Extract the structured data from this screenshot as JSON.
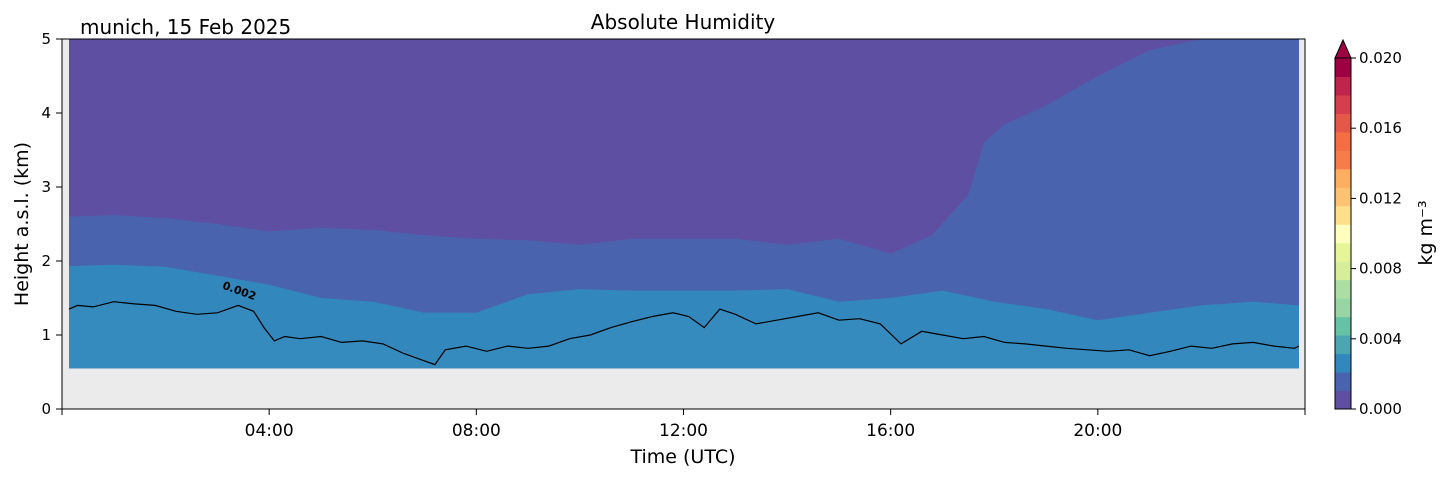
{
  "chart_data": {
    "type": "heatmap",
    "title": "Absolute Humidity",
    "location_date": "munich, 15 Feb 2025",
    "xlabel": "Time (UTC)",
    "ylabel": "Height a.s.l. (km)",
    "xlim_hours": [
      0,
      24
    ],
    "ylim_km": [
      0,
      5
    ],
    "x_ticks": [
      {
        "hour": 4,
        "label": "04:00"
      },
      {
        "hour": 8,
        "label": "08:00"
      },
      {
        "hour": 12,
        "label": "12:00"
      },
      {
        "hour": 16,
        "label": "16:00"
      },
      {
        "hour": 20,
        "label": "20:00"
      }
    ],
    "y_ticks": [
      {
        "value": 0,
        "label": "0"
      },
      {
        "value": 1,
        "label": "1"
      },
      {
        "value": 2,
        "label": "2"
      },
      {
        "value": 3,
        "label": "3"
      },
      {
        "value": 4,
        "label": "4"
      },
      {
        "value": 5,
        "label": "5"
      }
    ],
    "data_bottom_km": 0.55,
    "no_data_color": "#ebebeb",
    "colormap": "Spectral_r",
    "colorbar": {
      "label": "kg m⁻³",
      "range": [
        0.0,
        0.02
      ],
      "extend": "max",
      "ticks": [
        {
          "value": 0.0,
          "label": "0.000"
        },
        {
          "value": 0.004,
          "label": "0.004"
        },
        {
          "value": 0.008,
          "label": "0.008"
        },
        {
          "value": 0.012,
          "label": "0.012"
        },
        {
          "value": 0.016,
          "label": "0.016"
        },
        {
          "value": 0.02,
          "label": "0.020"
        }
      ],
      "colors": [
        "#5e4fa2",
        "#4a63ae",
        "#3288bd",
        "#4ca6b1",
        "#66c2a5",
        "#99d5a4",
        "#abdda4",
        "#d6ee9b",
        "#e6f598",
        "#fffebe",
        "#fee08b",
        "#fdc373",
        "#fdae61",
        "#f67d4a",
        "#f46d43",
        "#e55749",
        "#d53e4f",
        "#be244c",
        "#9e0142"
      ]
    },
    "filled_bands": [
      {
        "name": "lowest humidity",
        "color": "#5e4fa2",
        "boundary_km": []
      },
      {
        "name": "second band",
        "color": "#4a63ae",
        "boundary_hours": [
          0,
          1,
          2,
          3,
          4,
          5,
          6,
          7,
          8,
          9,
          10,
          11,
          12,
          13,
          14,
          15,
          16,
          16.8,
          17.5,
          17.8,
          18.2,
          19,
          20,
          21,
          22,
          23,
          24
        ],
        "boundary_km": [
          2.6,
          2.62,
          2.58,
          2.5,
          2.4,
          2.45,
          2.42,
          2.35,
          2.3,
          2.28,
          2.22,
          2.3,
          2.3,
          2.3,
          2.22,
          2.3,
          2.1,
          2.35,
          2.9,
          3.6,
          3.85,
          4.1,
          4.5,
          4.85,
          5.0,
          5.0,
          5.0
        ]
      },
      {
        "name": "third band",
        "color": "#3288bd",
        "boundary_hours": [
          0,
          1,
          2,
          3,
          4,
          5,
          6,
          7,
          8,
          9,
          10,
          11,
          12,
          13,
          14,
          15,
          16,
          17,
          18,
          19,
          20,
          21,
          22,
          23,
          24
        ],
        "boundary_km": [
          1.93,
          1.95,
          1.92,
          1.8,
          1.68,
          1.5,
          1.45,
          1.3,
          1.3,
          1.55,
          1.62,
          1.6,
          1.6,
          1.6,
          1.62,
          1.45,
          1.5,
          1.6,
          1.45,
          1.35,
          1.2,
          1.3,
          1.4,
          1.45,
          1.4
        ]
      },
      {
        "name": "lower layer",
        "color": "#3b8fbf",
        "boundary_km": []
      }
    ],
    "contour": {
      "level_label": "0.002",
      "label_hour": 3.4,
      "label_km": 1.55,
      "hours": [
        0,
        0.3,
        0.6,
        1,
        1.4,
        1.8,
        2.2,
        2.6,
        3.0,
        3.4,
        3.7,
        3.9,
        4.1,
        4.3,
        4.6,
        5.0,
        5.4,
        5.8,
        6.2,
        6.6,
        7.0,
        7.2,
        7.4,
        7.8,
        8.2,
        8.6,
        9.0,
        9.4,
        9.8,
        10.2,
        10.6,
        11.0,
        11.4,
        11.8,
        12.1,
        12.4,
        12.7,
        13.0,
        13.4,
        13.8,
        14.2,
        14.6,
        15.0,
        15.4,
        15.8,
        16.2,
        16.6,
        17.0,
        17.4,
        17.8,
        18.2,
        18.6,
        19.0,
        19.4,
        19.8,
        20.2,
        20.6,
        21.0,
        21.4,
        21.8,
        22.2,
        22.6,
        23.0,
        23.4,
        23.8,
        24
      ],
      "km": [
        1.35,
        1.4,
        1.38,
        1.45,
        1.42,
        1.4,
        1.32,
        1.28,
        1.3,
        1.4,
        1.32,
        1.1,
        0.92,
        0.98,
        0.95,
        0.98,
        0.9,
        0.92,
        0.88,
        0.75,
        0.65,
        0.6,
        0.8,
        0.85,
        0.78,
        0.85,
        0.82,
        0.85,
        0.95,
        1.0,
        1.1,
        1.18,
        1.25,
        1.3,
        1.25,
        1.1,
        1.35,
        1.28,
        1.15,
        1.2,
        1.25,
        1.3,
        1.2,
        1.22,
        1.15,
        0.88,
        1.05,
        1.0,
        0.95,
        0.98,
        0.9,
        0.88,
        0.85,
        0.82,
        0.8,
        0.78,
        0.8,
        0.72,
        0.78,
        0.85,
        0.82,
        0.88,
        0.9,
        0.85,
        0.82,
        0.85
      ]
    }
  }
}
